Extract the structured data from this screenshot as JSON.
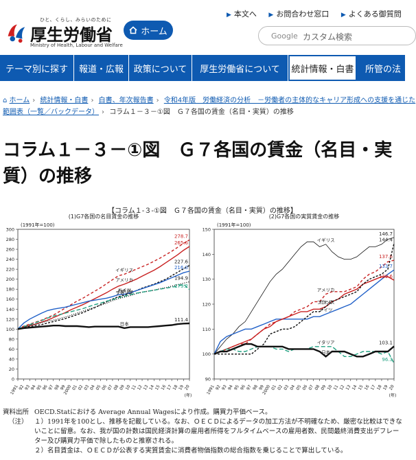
{
  "header": {
    "logo_tagline": "ひと、くらし、みらいのために",
    "logo_name": "厚生労働省",
    "logo_en": "Ministry of Health, Labour and Welfare",
    "home_label": "ホーム",
    "top_links": [
      "本文へ",
      "お問合わせ窓口",
      "よくある御質問"
    ],
    "search_brand": "Google",
    "search_placeholder": "カスタム検索"
  },
  "nav": {
    "items": [
      "テーマ別に探す",
      "報道・広報",
      "政策について",
      "厚生労働省について",
      "統計情報・白書",
      "所管の法"
    ],
    "active_index": 4
  },
  "breadcrumb": {
    "items": [
      "ホーム",
      "統計情報・白書",
      "白書、年次報告書",
      "令和4年版　労働経済の分析　－労働者の主体的なキャリア形成への支援を通じた",
      "範囲表（一覧／バックデータ）"
    ],
    "current": "コラム１－３－①図　Ｇ７各国の賃金（名目・実質）の推移"
  },
  "page_title": "コラム１－３－①図　Ｇ７各国の賃金（名目・実質）の推移",
  "figure_caption": "【コラム１-３-①図　Ｇ７各国の賃金（名目・実質）の推移】",
  "chart_data": [
    {
      "type": "line",
      "title": "(1)G7各国の名目賃金の推移",
      "index_note": "(1991年=100)",
      "ylim": [
        0,
        300
      ],
      "yticks": [
        0,
        20,
        40,
        60,
        80,
        100,
        120,
        140,
        160,
        180,
        200,
        220,
        240,
        260,
        280,
        300
      ],
      "x_tick_labels": [
        "1991",
        "92",
        "93",
        "94",
        "95",
        "96",
        "97",
        "98",
        "99",
        "2000",
        "01",
        "02",
        "03",
        "04",
        "05",
        "06",
        "07",
        "08",
        "09",
        "10",
        "11",
        "12",
        "13",
        "14",
        "15",
        "16",
        "17",
        "18",
        "19",
        "20"
      ],
      "x_unit": "(年)",
      "series": [
        {
          "name": "イギリス",
          "color": "#c82020",
          "dash": "4,3",
          "values": [
            100,
            106,
            110,
            114,
            118,
            123,
            128,
            135,
            142,
            149,
            156,
            162,
            169,
            176,
            183,
            191,
            199,
            207,
            210,
            215,
            220,
            225,
            230,
            236,
            242,
            249,
            256,
            264,
            272,
            278.7
          ],
          "end_label": "278.7"
        },
        {
          "name": "アメリカ",
          "color": "#c82020",
          "dash": "",
          "values": [
            100,
            104,
            107,
            110,
            114,
            118,
            123,
            128,
            133,
            139,
            144,
            149,
            155,
            161,
            167,
            173,
            180,
            186,
            190,
            195,
            200,
            206,
            212,
            218,
            225,
            233,
            241,
            249,
            258,
            265.6
          ],
          "end_label": "265.6"
        },
        {
          "name": "カナダ",
          "color": "#111111",
          "dash": "3,2",
          "values": [
            100,
            103,
            105,
            107,
            109,
            112,
            115,
            118,
            121,
            125,
            129,
            133,
            138,
            143,
            149,
            155,
            160,
            165,
            168,
            172,
            177,
            182,
            186,
            190,
            195,
            200,
            207,
            214,
            221,
            227.6
          ],
          "end_label": "227.6"
        },
        {
          "name": "ドイツ",
          "color": "#2060c8",
          "dash": "",
          "values": [
            100,
            112,
            120,
            126,
            132,
            137,
            140,
            142,
            144,
            147,
            150,
            153,
            156,
            158,
            160,
            162,
            165,
            169,
            170,
            173,
            177,
            181,
            185,
            189,
            193,
            198,
            203,
            208,
            213,
            216.0
          ],
          "end_label": "216.0"
        },
        {
          "name": "フランス",
          "color": "#111111",
          "dash": "1,2",
          "values": [
            100,
            104,
            107,
            110,
            113,
            116,
            118,
            121,
            124,
            128,
            132,
            136,
            140,
            144,
            148,
            152,
            157,
            161,
            164,
            167,
            171,
            174,
            176,
            178,
            181,
            183,
            186,
            189,
            192,
            194.9
          ],
          "end_label": "194.9"
        },
        {
          "name": "イタリア",
          "color": "#20a080",
          "dash": "6,3",
          "values": [
            100,
            105,
            109,
            113,
            117,
            122,
            126,
            129,
            132,
            135,
            138,
            141,
            145,
            149,
            152,
            156,
            159,
            163,
            166,
            169,
            172,
            174,
            176,
            178,
            180,
            182,
            184,
            186,
            190,
            179.2
          ],
          "end_label": "179.2"
        },
        {
          "name": "日本",
          "color": "#111111",
          "dash": "",
          "width": 2.4,
          "values": [
            100,
            102,
            103,
            104,
            105,
            106,
            107,
            107,
            106,
            106,
            106,
            105,
            104,
            105,
            105,
            105,
            105,
            105,
            102,
            104,
            104,
            104,
            104,
            105,
            106,
            107,
            108,
            110,
            111,
            111.4
          ],
          "end_label": "111.4"
        }
      ]
    },
    {
      "type": "line",
      "title": "(2)G7各国の実質賃金の推移",
      "index_note": "(1991年=100)",
      "ylim": [
        90,
        150
      ],
      "yticks": [
        90,
        100,
        110,
        120,
        130,
        140,
        150
      ],
      "x_tick_labels": [
        "1991",
        "92",
        "93",
        "94",
        "95",
        "96",
        "97",
        "98",
        "99",
        "2000",
        "01",
        "02",
        "03",
        "04",
        "05",
        "06",
        "07",
        "08",
        "09",
        "10",
        "11",
        "12",
        "13",
        "14",
        "15",
        "16",
        "17",
        "18",
        "19",
        "20"
      ],
      "x_unit": "(年)",
      "series": [
        {
          "name": "イギリス",
          "color": "#111111",
          "dash": "",
          "width": 0.8,
          "values": [
            100,
            103,
            106,
            108,
            111,
            113,
            117,
            121,
            125,
            129,
            132,
            134,
            137,
            140,
            143,
            145,
            145,
            143,
            144,
            141,
            139,
            138,
            138,
            139,
            141,
            143,
            143,
            144,
            146,
            146.7
          ],
          "end_label": "146.7"
        },
        {
          "name": "アメリカ",
          "color": "#c82020",
          "dash": "4,3",
          "values": [
            100,
            101,
            102,
            103,
            104,
            104,
            106,
            108,
            110,
            112,
            113,
            114,
            115,
            117,
            118,
            119,
            121,
            121,
            124,
            125,
            125,
            125,
            126,
            127,
            130,
            132,
            133,
            135,
            137,
            137.6
          ],
          "end_label": "137.6"
        },
        {
          "name": "ドイツ",
          "color": "#2060c8",
          "dash": "",
          "values": [
            100,
            105,
            107,
            108,
            109,
            110,
            110,
            111,
            112,
            113,
            114,
            114,
            114,
            114,
            114,
            114,
            115,
            115,
            116,
            117,
            118,
            119,
            120,
            122,
            124,
            126,
            128,
            130,
            132,
            133.7
          ],
          "end_label": "133.7"
        },
        {
          "name": "フランス",
          "color": "#c82020",
          "dash": "",
          "values": [
            100,
            101,
            102,
            103,
            104,
            105,
            106,
            108,
            110,
            111,
            113,
            114,
            115,
            116,
            117,
            117,
            118,
            118,
            119,
            121,
            122,
            124,
            125,
            126,
            128,
            129,
            130,
            131,
            131,
            129.6
          ],
          "end_label": "129.6"
        },
        {
          "name": "カナダ",
          "color": "#111111",
          "dash": "3,2",
          "values": [
            100,
            100,
            100,
            100,
            100,
            100,
            100,
            102,
            104,
            108,
            109,
            110,
            110,
            111,
            113,
            115,
            117,
            117,
            119,
            121,
            122,
            123,
            124,
            125,
            128,
            130,
            131,
            132,
            134,
            144.4
          ],
          "end_label": "144.4"
        },
        {
          "name": "イタリア",
          "color": "#20a080",
          "dash": "6,3",
          "values": [
            100,
            101,
            102,
            102,
            101,
            101,
            102,
            103,
            103,
            103,
            102,
            102,
            101,
            102,
            102,
            102,
            103,
            103,
            103,
            103,
            101,
            99,
            99,
            100,
            101,
            101,
            101,
            100,
            101,
            96.3
          ],
          "end_label": "96.3"
        },
        {
          "name": "日本",
          "color": "#111111",
          "dash": "",
          "width": 2.4,
          "values": [
            100,
            101,
            101,
            102,
            103,
            104,
            104,
            103,
            103,
            103,
            103,
            103,
            102,
            102,
            102,
            102,
            102,
            101,
            99,
            101,
            101,
            101,
            100,
            99,
            99,
            100,
            101,
            101,
            101,
            103.1
          ],
          "end_label": "103.1"
        }
      ]
    }
  ],
  "notes": {
    "source_head": "資料出所",
    "source_body": "OECD.Statにおける Average Annual Wagesにより作成。購買力平価ベース。",
    "note_head": "（注）",
    "note1": "１）1991年を100とし、推移を記載している。なお、ＯＥＣＤによるデータの加工方法が不明確なため、厳密な比較はできないことに留意。なお、我が国の計数は国民経済計算の雇用者所得をフルタイムベースの雇用者数、民間最終消費支出デフレーター及び購買力平価で除したものと推察される。",
    "note2": "２）名目賃金は、ＯＥＣＤが公表する実質賃金に消費者物価指数の総合指数を乗じることで算出している。"
  }
}
